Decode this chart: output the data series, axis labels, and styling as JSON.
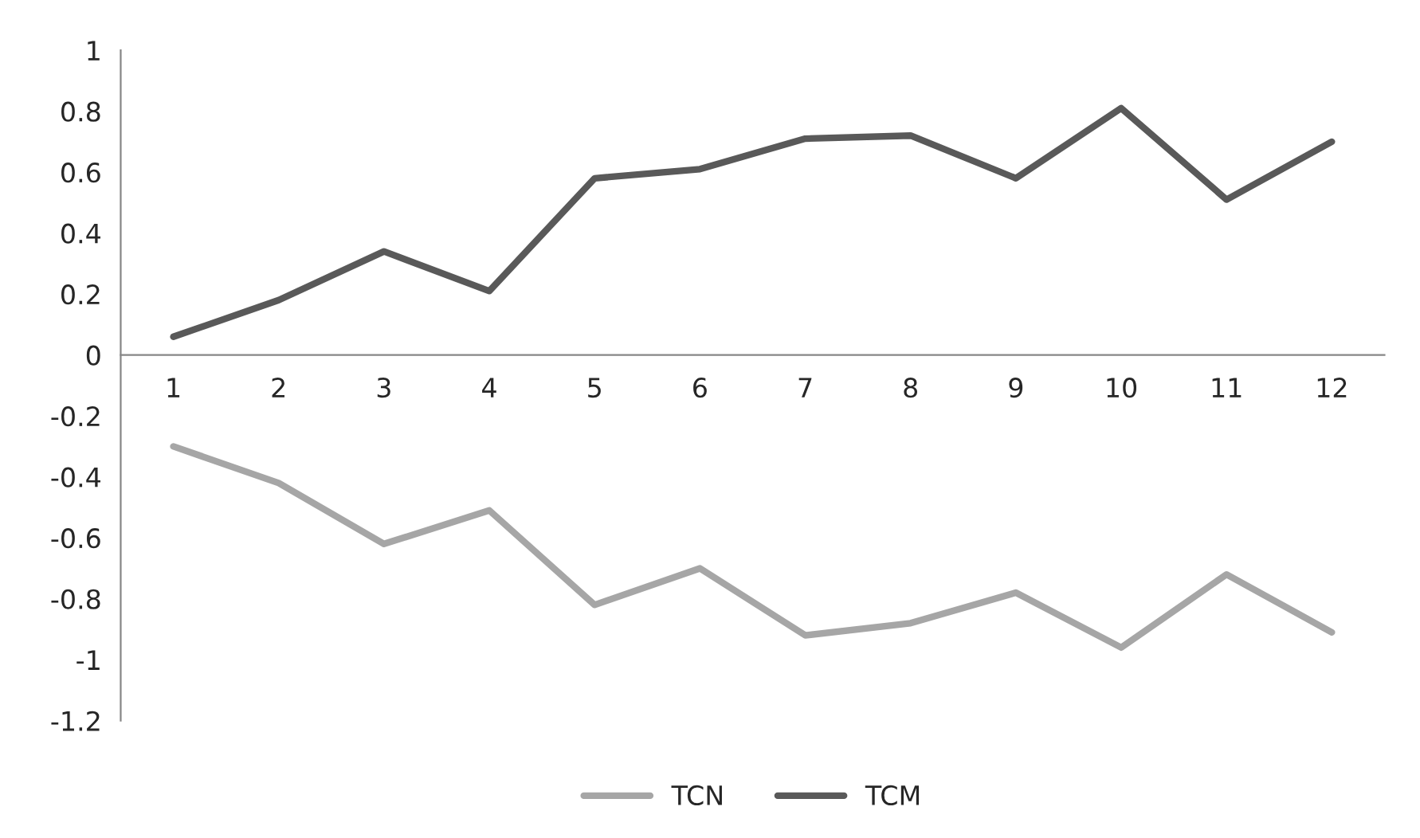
{
  "chart_data": {
    "type": "line",
    "categories": [
      "1",
      "2",
      "3",
      "4",
      "5",
      "6",
      "7",
      "8",
      "9",
      "10",
      "11",
      "12"
    ],
    "series": [
      {
        "name": "TCN",
        "color": "#a6a6a6",
        "values": [
          -0.3,
          -0.42,
          -0.62,
          -0.51,
          -0.82,
          -0.7,
          -0.92,
          -0.88,
          -0.78,
          -0.96,
          -0.72,
          -0.91
        ]
      },
      {
        "name": "TCM",
        "color": "#595959",
        "values": [
          0.06,
          0.18,
          0.34,
          0.21,
          0.58,
          0.61,
          0.71,
          0.72,
          0.58,
          0.81,
          0.51,
          0.7
        ]
      }
    ],
    "ylim": [
      -1.2,
      1
    ],
    "yticks": [
      -1.2,
      -1,
      -0.8,
      -0.6,
      -0.4,
      -0.2,
      0,
      0.2,
      0.4,
      0.6,
      0.8,
      1
    ],
    "grid": false,
    "legend": "bottom",
    "marker": "none",
    "line_style": "solid"
  }
}
